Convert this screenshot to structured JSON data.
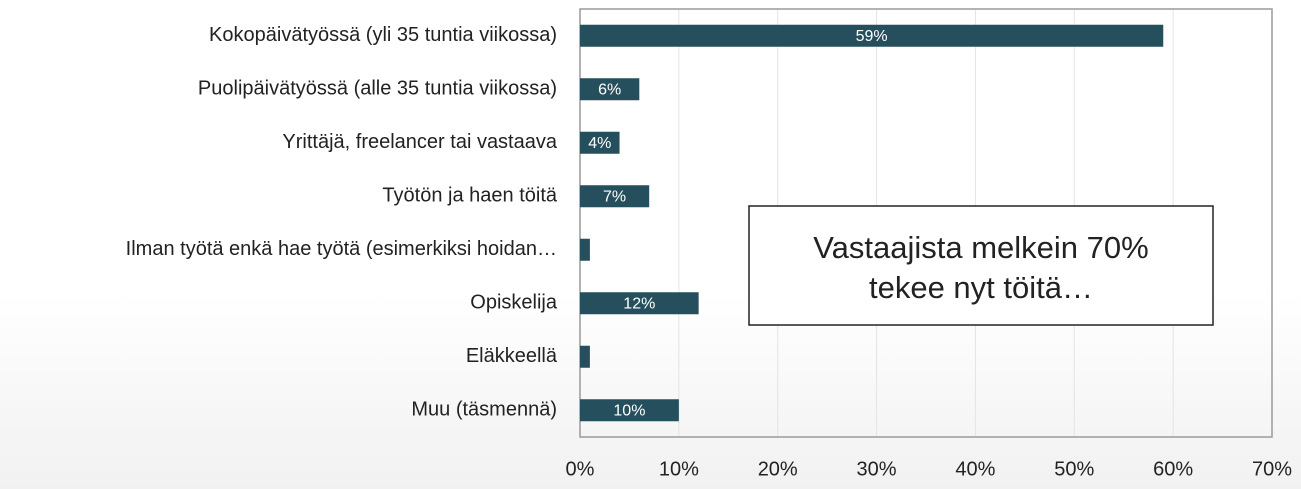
{
  "chart_data": {
    "type": "barh",
    "categories": [
      "Kokopäivätyössä (yli 35 tuntia viikossa)",
      "Puolipäivätyössä (alle 35 tuntia viikossa)",
      "Yrittäjä, freelancer tai vastaava",
      "Työtön ja haen töitä",
      "Ilman työtä enkä hae työtä (esimerkiksi hoidan…",
      "Opiskelija",
      "Eläkkeellä",
      "Muu (täsmennä)"
    ],
    "values": [
      59,
      6,
      4,
      7,
      1,
      12,
      1,
      10
    ],
    "value_labels": [
      "59%",
      "6%",
      "4%",
      "7%",
      null,
      "12%",
      null,
      "10%"
    ],
    "color": "#264f5e",
    "xlim": [
      0,
      70
    ],
    "xticks": [
      {
        "value": 0,
        "label": "0%"
      },
      {
        "value": 10,
        "label": "10%"
      },
      {
        "value": 20,
        "label": "20%"
      },
      {
        "value": 30,
        "label": "30%"
      },
      {
        "value": 40,
        "label": "40%"
      },
      {
        "value": 50,
        "label": "50%"
      },
      {
        "value": 60,
        "label": "60%"
      },
      {
        "value": 70,
        "label": "70%"
      }
    ],
    "grid": true,
    "annotation": [
      "Vastaajista melkein 70%",
      "tekee nyt töitä…"
    ]
  }
}
